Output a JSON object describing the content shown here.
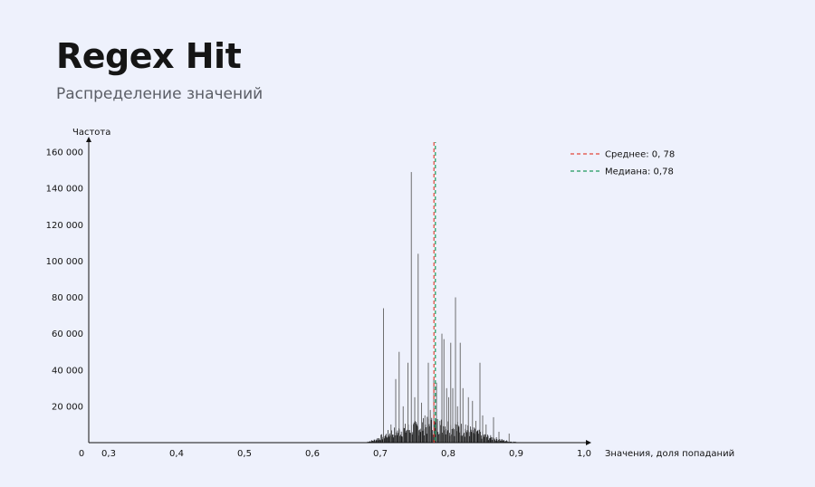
{
  "header": {
    "title": "Regex Hit",
    "subtitle": "Распределение значений"
  },
  "colors": {
    "background": "#eef1fc",
    "bars": "#1a1a1a",
    "mean": "#e3483b",
    "median": "#1f9a5b",
    "grid": "#dfe3f0"
  },
  "chart_data": {
    "type": "bar",
    "title": "Regex Hit",
    "subtitle": "Распределение значений",
    "xlabel": "Значения, доля попаданий",
    "ylabel": "Частота",
    "xlim": [
      0.25,
      1.0
    ],
    "ylim": [
      0,
      165000
    ],
    "x_origin_label": "0",
    "x_ticks": [
      0.3,
      0.4,
      0.5,
      0.6,
      0.7,
      0.8,
      0.9,
      1.0
    ],
    "x_tick_labels": [
      "0,3",
      "0,4",
      "0,5",
      "0,6",
      "0,7",
      "0,8",
      "0,9",
      "1,0"
    ],
    "y_ticks": [
      20000,
      40000,
      60000,
      80000,
      100000,
      120000,
      140000,
      160000
    ],
    "y_tick_labels": [
      "20 000",
      "40 000",
      "60 000",
      "80 000",
      "100 000",
      "120 000",
      "140 000",
      "160 000"
    ],
    "grid": false,
    "legend_position": "top-right",
    "mean": {
      "value": 0.78,
      "label": "Среднее: 0, 78"
    },
    "median": {
      "value": 0.78,
      "label": "Медиана: 0,78"
    },
    "spikes": [
      {
        "x": 0.704,
        "y": 74000
      },
      {
        "x": 0.715,
        "y": 10000
      },
      {
        "x": 0.722,
        "y": 35000
      },
      {
        "x": 0.727,
        "y": 50000
      },
      {
        "x": 0.733,
        "y": 20000
      },
      {
        "x": 0.74,
        "y": 44000
      },
      {
        "x": 0.745,
        "y": 149000
      },
      {
        "x": 0.75,
        "y": 25000
      },
      {
        "x": 0.755,
        "y": 104000
      },
      {
        "x": 0.76,
        "y": 22000
      },
      {
        "x": 0.765,
        "y": 15000
      },
      {
        "x": 0.77,
        "y": 44000
      },
      {
        "x": 0.773,
        "y": 18000
      },
      {
        "x": 0.778,
        "y": 35000
      },
      {
        "x": 0.782,
        "y": 33000
      },
      {
        "x": 0.787,
        "y": 12000
      },
      {
        "x": 0.79,
        "y": 60000
      },
      {
        "x": 0.793,
        "y": 57000
      },
      {
        "x": 0.797,
        "y": 30000
      },
      {
        "x": 0.8,
        "y": 25000
      },
      {
        "x": 0.803,
        "y": 55000
      },
      {
        "x": 0.806,
        "y": 30000
      },
      {
        "x": 0.81,
        "y": 80000
      },
      {
        "x": 0.813,
        "y": 20000
      },
      {
        "x": 0.817,
        "y": 55000
      },
      {
        "x": 0.821,
        "y": 30000
      },
      {
        "x": 0.825,
        "y": 10000
      },
      {
        "x": 0.829,
        "y": 25000
      },
      {
        "x": 0.835,
        "y": 23000
      },
      {
        "x": 0.84,
        "y": 12000
      },
      {
        "x": 0.846,
        "y": 44000
      },
      {
        "x": 0.85,
        "y": 15000
      },
      {
        "x": 0.855,
        "y": 10000
      },
      {
        "x": 0.866,
        "y": 14000
      },
      {
        "x": 0.874,
        "y": 6000
      },
      {
        "x": 0.889,
        "y": 5000
      }
    ],
    "baseline": [
      {
        "x": 0.68,
        "y": 600
      },
      {
        "x": 0.69,
        "y": 1500
      },
      {
        "x": 0.7,
        "y": 3500
      },
      {
        "x": 0.71,
        "y": 5500
      },
      {
        "x": 0.72,
        "y": 7000
      },
      {
        "x": 0.73,
        "y": 8000
      },
      {
        "x": 0.74,
        "y": 9000
      },
      {
        "x": 0.75,
        "y": 10000
      },
      {
        "x": 0.76,
        "y": 11000
      },
      {
        "x": 0.77,
        "y": 11500
      },
      {
        "x": 0.78,
        "y": 12000
      },
      {
        "x": 0.79,
        "y": 11500
      },
      {
        "x": 0.8,
        "y": 11000
      },
      {
        "x": 0.81,
        "y": 10000
      },
      {
        "x": 0.82,
        "y": 9000
      },
      {
        "x": 0.83,
        "y": 8000
      },
      {
        "x": 0.84,
        "y": 6500
      },
      {
        "x": 0.85,
        "y": 5000
      },
      {
        "x": 0.86,
        "y": 3500
      },
      {
        "x": 0.87,
        "y": 2500
      },
      {
        "x": 0.88,
        "y": 1500
      },
      {
        "x": 0.89,
        "y": 800
      },
      {
        "x": 0.9,
        "y": 400
      },
      {
        "x": 0.91,
        "y": 100
      }
    ]
  }
}
